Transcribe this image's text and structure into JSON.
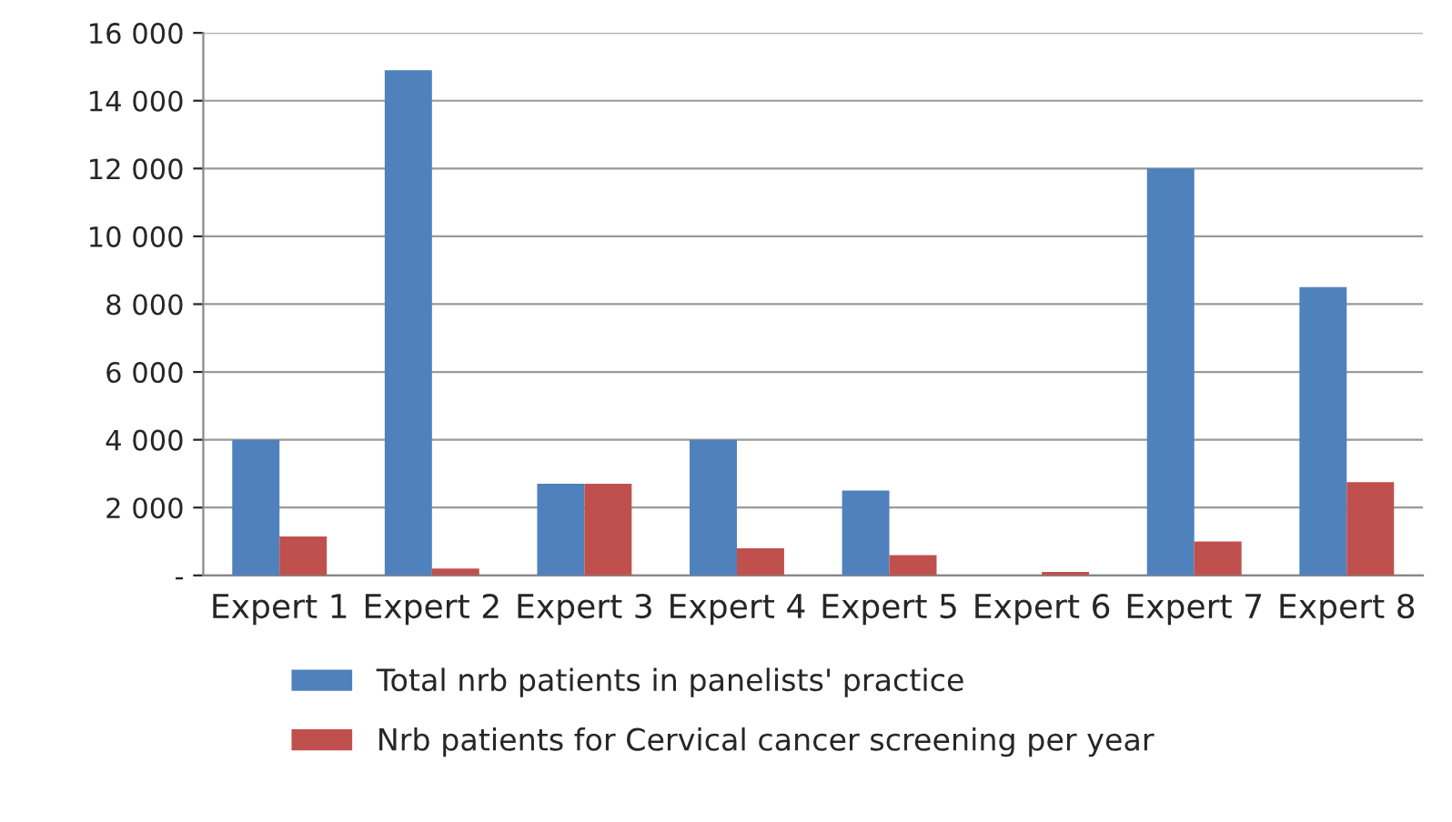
{
  "chart_data": {
    "type": "bar",
    "categories": [
      "Expert 1",
      "Expert 2",
      "Expert 3",
      "Expert 4",
      "Expert 5",
      "Expert 6",
      "Expert 7",
      "Expert 8"
    ],
    "series": [
      {
        "name": "Total nrb patients in panelists' practice",
        "color": "#4f81bd",
        "values": [
          4000,
          14900,
          2700,
          4000,
          2500,
          0,
          12000,
          8500
        ]
      },
      {
        "name": "Nrb patients for Cervical cancer screening per year",
        "color": "#c0504d",
        "values": [
          1150,
          200,
          2700,
          800,
          600,
          100,
          1000,
          2750
        ]
      }
    ],
    "ylim": [
      0,
      16000
    ],
    "yticks": [
      {
        "value": 0,
        "label": "-"
      },
      {
        "value": 2000,
        "label": "2 000"
      },
      {
        "value": 4000,
        "label": "4 000"
      },
      {
        "value": 6000,
        "label": "6 000"
      },
      {
        "value": 8000,
        "label": "8 000"
      },
      {
        "value": 10000,
        "label": "10 000"
      },
      {
        "value": 12000,
        "label": "12 000"
      },
      {
        "value": 14000,
        "label": "14 000"
      },
      {
        "value": 16000,
        "label": "16 000"
      }
    ],
    "grid": "y",
    "legend": "bottom"
  }
}
